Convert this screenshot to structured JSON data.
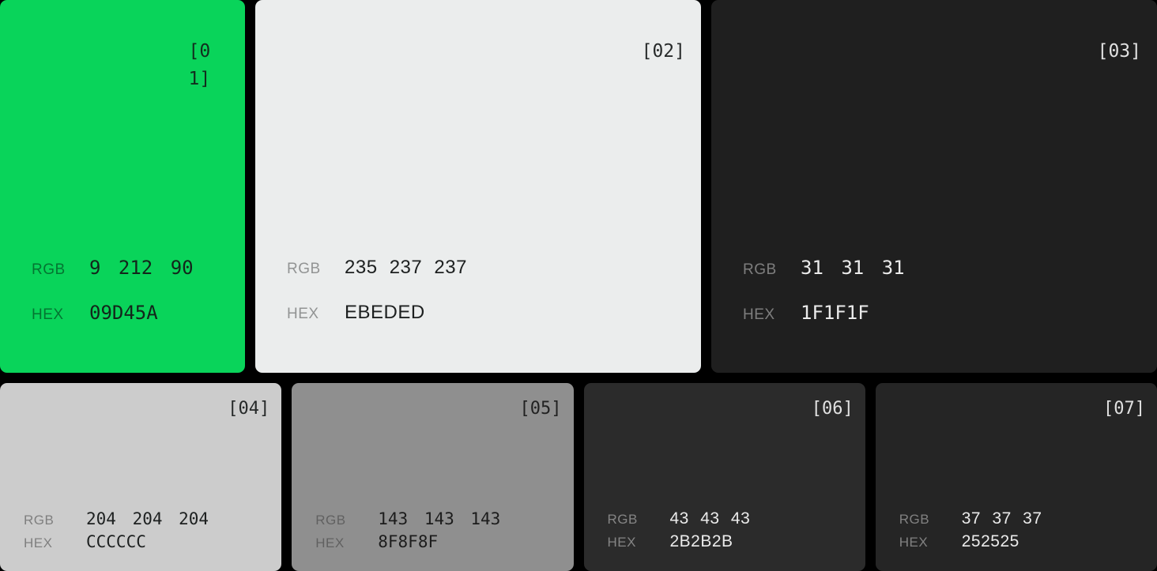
{
  "page": {
    "background": "#000000"
  },
  "swatches": [
    {
      "index_label": "[01]",
      "color": "#09D45A",
      "rgb_label": "RGB",
      "rgb_value": "9 212 90",
      "hex_label": "HEX",
      "hex_value": "09D45A"
    },
    {
      "index_label": "[02]",
      "color": "#EBEDED",
      "rgb_label": "RGB",
      "rgb_value": "235 237 237",
      "hex_label": "HEX",
      "hex_value": "EBEDED"
    },
    {
      "index_label": "[03]",
      "color": "#1F1F1F",
      "rgb_label": "RGB",
      "rgb_value": "31 31 31",
      "hex_label": "HEX",
      "hex_value": "1F1F1F"
    },
    {
      "index_label": "[04]",
      "color": "#CCCCCC",
      "rgb_label": "RGB",
      "rgb_value": "204 204 204",
      "hex_label": "HEX",
      "hex_value": "CCCCCC"
    },
    {
      "index_label": "[05]",
      "color": "#8F8F8F",
      "rgb_label": "RGB",
      "rgb_value": "143 143 143",
      "hex_label": "HEX",
      "hex_value": "8F8F8F"
    },
    {
      "index_label": "[06]",
      "color": "#2B2B2B",
      "rgb_label": "RGB",
      "rgb_value": "43 43 43",
      "hex_label": "HEX",
      "hex_value": "2B2B2B"
    },
    {
      "index_label": "[07]",
      "color": "#252525",
      "rgb_label": "RGB",
      "rgb_value": "37 37 37",
      "hex_label": "HEX",
      "hex_value": "252525"
    }
  ]
}
